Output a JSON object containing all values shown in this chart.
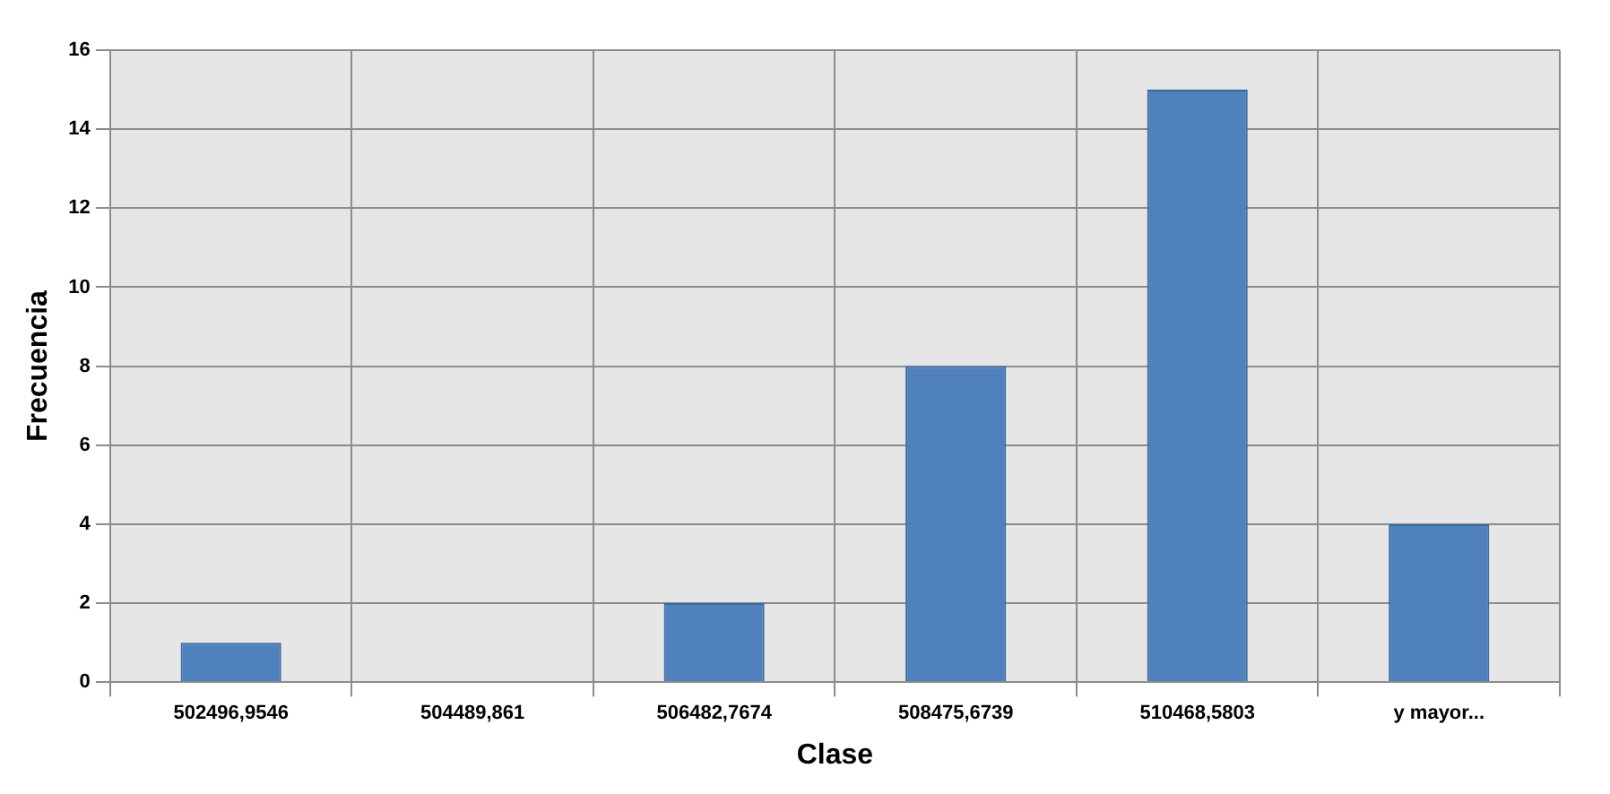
{
  "chart_data": {
    "type": "bar",
    "xlabel": "Clase",
    "ylabel": "Frecuencia",
    "categories": [
      "502496,9546",
      "504489,861",
      "506482,7674",
      "508475,6739",
      "510468,5803",
      "y mayor..."
    ],
    "values": [
      1,
      0,
      2,
      8,
      15,
      4
    ],
    "color": "#4f81bd",
    "ylim": [
      0,
      16
    ],
    "yticks": [
      0,
      2,
      4,
      6,
      8,
      10,
      12,
      14,
      16
    ],
    "grid": true,
    "legend": false
  }
}
